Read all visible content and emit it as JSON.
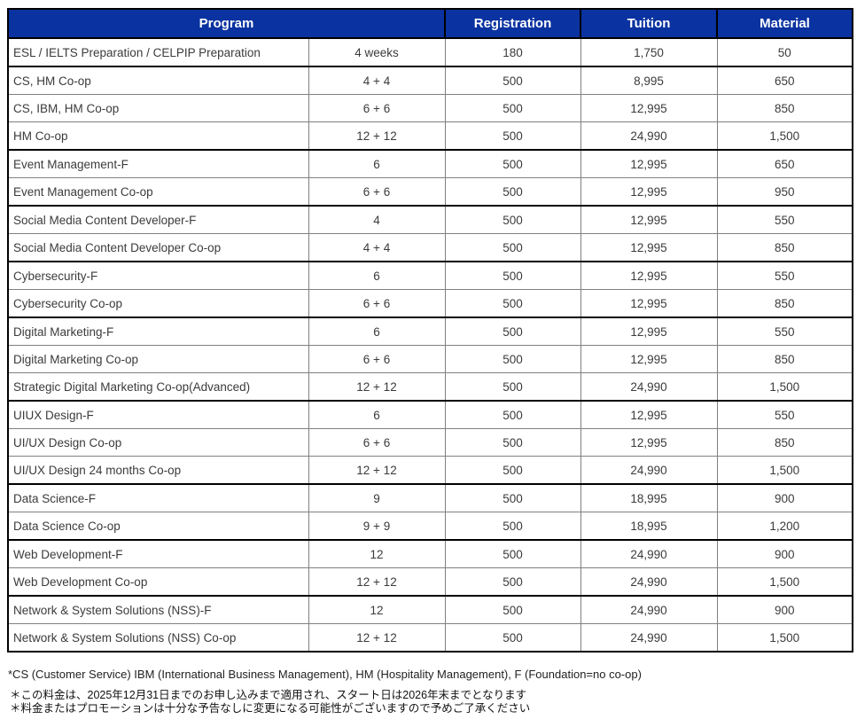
{
  "table": {
    "headers": {
      "program": "Program",
      "registration": "Registration",
      "tuition": "Tuition",
      "material": "Material"
    },
    "rows": [
      {
        "program": "ESL / IELTS Preparation / CELPIP Preparation",
        "duration": "4 weeks",
        "registration": "180",
        "tuition": "1,750",
        "material": "50",
        "group_start": false
      },
      {
        "program": "CS, HM Co-op",
        "duration": "4 + 4",
        "registration": "500",
        "tuition": "8,995",
        "material": "650",
        "group_start": true
      },
      {
        "program": "CS, IBM, HM Co-op",
        "duration": "6 + 6",
        "registration": "500",
        "tuition": "12,995",
        "material": "850",
        "group_start": false
      },
      {
        "program": "HM Co-op",
        "duration": "12 + 12",
        "registration": "500",
        "tuition": "24,990",
        "material": "1,500",
        "group_start": false
      },
      {
        "program": "Event Management-F",
        "duration": "6",
        "registration": "500",
        "tuition": "12,995",
        "material": "650",
        "group_start": true
      },
      {
        "program": "Event Management Co-op",
        "duration": "6 + 6",
        "registration": "500",
        "tuition": "12,995",
        "material": "950",
        "group_start": false
      },
      {
        "program": "Social Media Content Developer-F",
        "duration": "4",
        "registration": "500",
        "tuition": "12,995",
        "material": "550",
        "group_start": true
      },
      {
        "program": "Social Media Content Developer Co-op",
        "duration": "4 + 4",
        "registration": "500",
        "tuition": "12,995",
        "material": "850",
        "group_start": false
      },
      {
        "program": "Cybersecurity-F",
        "duration": "6",
        "registration": "500",
        "tuition": "12,995",
        "material": "550",
        "group_start": true
      },
      {
        "program": "Cybersecurity Co-op",
        "duration": "6 + 6",
        "registration": "500",
        "tuition": "12,995",
        "material": "850",
        "group_start": false
      },
      {
        "program": "Digital Marketing-F",
        "duration": "6",
        "registration": "500",
        "tuition": "12,995",
        "material": "550",
        "group_start": true
      },
      {
        "program": "Digital Marketing Co-op",
        "duration": "6 + 6",
        "registration": "500",
        "tuition": "12,995",
        "material": "850",
        "group_start": false
      },
      {
        "program": "Strategic Digital Marketing Co-op(Advanced)",
        "duration": "12 + 12",
        "registration": "500",
        "tuition": "24,990",
        "material": "1,500",
        "group_start": false
      },
      {
        "program": "UIUX Design-F",
        "duration": "6",
        "registration": "500",
        "tuition": "12,995",
        "material": "550",
        "group_start": true
      },
      {
        "program": "UI/UX Design Co-op",
        "duration": "6 + 6",
        "registration": "500",
        "tuition": "12,995",
        "material": "850",
        "group_start": false
      },
      {
        "program": "UI/UX Design 24 months Co-op",
        "duration": "12 + 12",
        "registration": "500",
        "tuition": "24,990",
        "material": "1,500",
        "group_start": false
      },
      {
        "program": "Data Science-F",
        "duration": "9",
        "registration": "500",
        "tuition": "18,995",
        "material": "900",
        "group_start": true
      },
      {
        "program": "Data Science Co-op",
        "duration": "9 + 9",
        "registration": "500",
        "tuition": "18,995",
        "material": "1,200",
        "group_start": false
      },
      {
        "program": "Web Development-F",
        "duration": "12",
        "registration": "500",
        "tuition": "24,990",
        "material": "900",
        "group_start": true
      },
      {
        "program": "Web Development Co-op",
        "duration": "12 + 12",
        "registration": "500",
        "tuition": "24,990",
        "material": "1,500",
        "group_start": false
      },
      {
        "program": "Network & System Solutions (NSS)-F",
        "duration": "12",
        "registration": "500",
        "tuition": "24,990",
        "material": "900",
        "group_start": true
      },
      {
        "program": "Network & System Solutions (NSS) Co-op",
        "duration": "12 + 12",
        "registration": "500",
        "tuition": "24,990",
        "material": "1,500",
        "group_start": false
      }
    ]
  },
  "footnotes": {
    "en": "*CS (Customer Service) IBM (International Business Management), HM (Hospitality Management), F (Foundation=no co-op)",
    "jp1": "＊この料金は、2025年12月31日までのお申し込みまで適用され、スタート日は2026年末までとなります",
    "jp2": "＊料金またはプロモーションは十分な予告なしに変更になる可能性がございますので予めご了承ください"
  },
  "colors": {
    "header_bg": "#0a32a0",
    "header_text": "#ffffff",
    "border_thick": "#000000",
    "border_thin": "#808080",
    "body_text": "#3b3b3b"
  }
}
